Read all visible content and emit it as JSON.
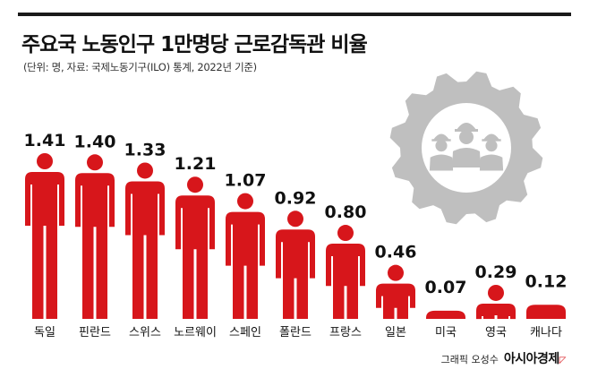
{
  "header": {
    "title": "주요국 노동인구 1만명당 근로감독관 비율",
    "subtitle": "(단위: 명, 자료: 국제노동기구(ILO) 통계, 2022년 기준)"
  },
  "credit": {
    "graphic": "그래픽 오성수",
    "brand": "아시아경제"
  },
  "colors": {
    "bar": "#d7161b",
    "gear": "#bfbfbf",
    "text": "#111111"
  },
  "icons": [
    "gear-workers-icon"
  ],
  "chart_data": {
    "type": "bar",
    "categories": [
      "독일",
      "핀란드",
      "스위스",
      "노르웨이",
      "스페인",
      "폴란드",
      "프랑스",
      "일본",
      "미국",
      "영국",
      "캐나다"
    ],
    "values": [
      1.41,
      1.4,
      1.33,
      1.21,
      1.07,
      0.92,
      0.8,
      0.46,
      0.07,
      0.29,
      0.12
    ],
    "labels": [
      "1.41",
      "1.40",
      "1.33",
      "1.21",
      "1.07",
      "0.92",
      "0.80",
      "0.46",
      "0.07",
      "0.29",
      "0.12"
    ],
    "title": "주요국 노동인구 1만명당 근로감독관 비율",
    "xlabel": "",
    "ylabel": "",
    "ylim": [
      0,
      1.5
    ],
    "grid": false
  }
}
